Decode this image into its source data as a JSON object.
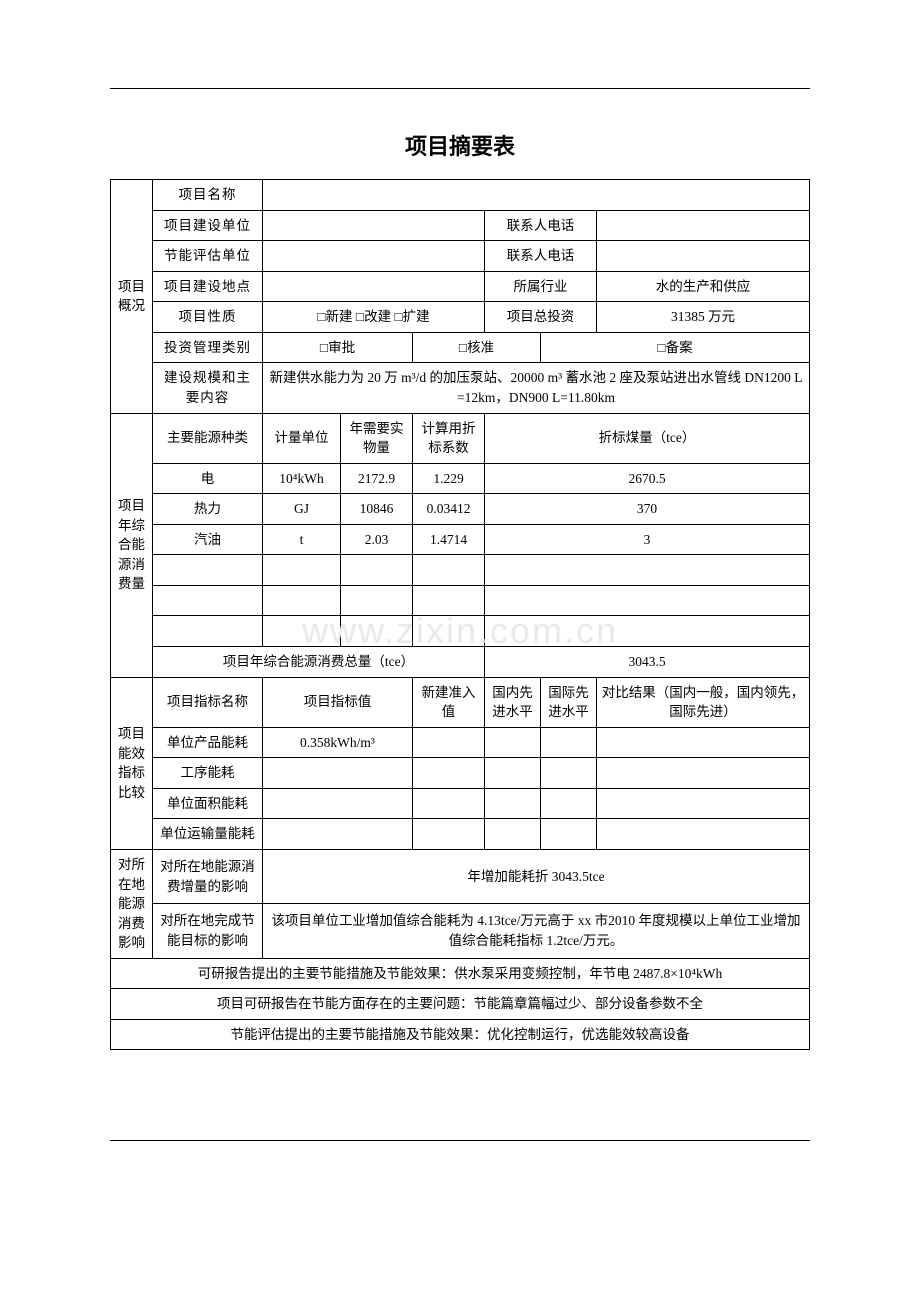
{
  "title": "项目摘要表",
  "watermark": "www.zixin.com.cn",
  "sections": {
    "overview": {
      "side": "项目概况",
      "rows": {
        "name_lbl": "项目名称",
        "builder_lbl": "项目建设单位",
        "contact_lbl": "联系人电话",
        "eval_unit_lbl": "节能评估单位",
        "contact2_lbl": "联系人电话",
        "site_lbl": "项目建设地点",
        "industry_lbl": "所属行业",
        "industry_val": "水的生产和供应",
        "nature_lbl": "项目性质",
        "nature_val": "□新建 □改建 □扩建",
        "invest_total_lbl": "项目总投资",
        "invest_total_val": "31385 万元",
        "mgmt_lbl": "投资管理类别",
        "mgmt_val1": "□审批",
        "mgmt_val2": "□核准",
        "mgmt_val3": "□备案",
        "scope_lbl": "建设规模和主要内容",
        "scope_val": "新建供水能力为 20 万 m³/d 的加压泵站、20000 m³ 蓄水池 2 座及泵站进出水管线 DN1200 L=12km，DN900 L=11.80km"
      }
    },
    "energy": {
      "side": "项目年综合能源消费量",
      "head": {
        "kind": "主要能源种类",
        "unit": "计量单位",
        "qty": "年需要实物量",
        "coef": "计算用折标系数",
        "tce": "折标煤量（tce）"
      },
      "rows": [
        {
          "kind": "电",
          "unit": "10⁴kWh",
          "qty": "2172.9",
          "coef": "1.229",
          "tce": "2670.5"
        },
        {
          "kind": "热力",
          "unit": "GJ",
          "qty": "10846",
          "coef": "0.03412",
          "tce": "370"
        },
        {
          "kind": "汽油",
          "unit": "t",
          "qty": "2.03",
          "coef": "1.4714",
          "tce": "3"
        }
      ],
      "total_lbl": "项目年综合能源消费总量（tce）",
      "total_val": "3043.5"
    },
    "eff": {
      "side": "项目能效指标比较",
      "head": {
        "name": "项目指标名称",
        "val": "项目指标值",
        "new": "新建准入值",
        "dom": "国内先进水平",
        "intl": "国际先进水平",
        "cmp": "对比结果（国内一般，国内领先，国际先进）"
      },
      "rows": [
        {
          "name": "单位产品能耗",
          "val": "0.358kWh/m³"
        },
        {
          "name": "工序能耗",
          "val": ""
        },
        {
          "name": "单位面积能耗",
          "val": ""
        },
        {
          "name": "单位运输量能耗",
          "val": ""
        }
      ]
    },
    "impact": {
      "side": "对所在地能源消费影响",
      "row1_lbl": "对所在地能源消费增量的影响",
      "row1_val": "年增加能耗折 3043.5tce",
      "row2_lbl": "对所在地完成节能目标的影响",
      "row2_val": "该项目单位工业增加值综合能耗为 4.13tce/万元高于 xx 市2010 年度规模以上单位工业增加值综合能耗指标 1.2tce/万元。"
    },
    "notes": {
      "n1": "可研报告提出的主要节能措施及节能效果：供水泵采用变频控制，年节电 2487.8×10⁴kWh",
      "n2": "项目可研报告在节能方面存在的主要问题：节能篇章篇幅过少、部分设备参数不全",
      "n3": "节能评估提出的主要节能措施及节能效果：优化控制运行，优选能效较高设备"
    }
  },
  "colors": {
    "border": "#000000",
    "text": "#000000",
    "background": "#ffffff",
    "watermark": "#e9e9e9"
  },
  "fonts": {
    "body_family": "SimSun",
    "title_family": "SimHei",
    "body_size_pt": 10,
    "title_size_pt": 16
  }
}
